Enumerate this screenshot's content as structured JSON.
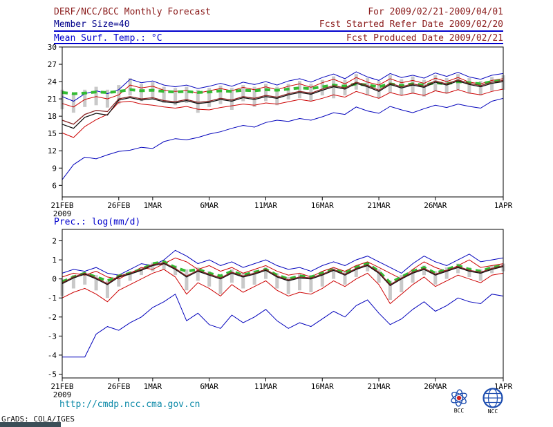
{
  "header": {
    "title": "DERF/NCC/BCC Monthly Forecast",
    "member_size": "Member Size=40",
    "temp_label": "Mean Surf. Temp.: °C",
    "for_range": "For 2009/02/21-2009/04/01",
    "refer_date": "Fcst Started Refer Date 2009/02/20",
    "produced_date": "Fcst Produced Date 2009/02/21"
  },
  "mid_label": "Prec.: log(mm/d)",
  "footer": {
    "url": "http://cmdp.ncc.cma.gov.cn",
    "credit": "GrADS: COLA/IGES",
    "logo_bcc": "BCC",
    "logo_ncc": "NCC"
  },
  "colors": {
    "title_maroon": "#8b1c1c",
    "member_navy": "#00008b",
    "label_blue": "#0000cc",
    "rule_blue": "#0000cc",
    "url_teal": "#0d8aa8",
    "bar_gray": "#c9c9c9"
  },
  "chart_data": [
    {
      "type": "line",
      "title": "Mean Surf. Temp.: °C",
      "xlabel": "",
      "ylabel": "°C",
      "ylim": [
        4,
        30
      ],
      "yticks": [
        6,
        9,
        12,
        15,
        18,
        21,
        24,
        27,
        30
      ],
      "grid": false,
      "legend": "none",
      "xticks": [
        {
          "day": 0,
          "label": "21FEB",
          "sub": "2009"
        },
        {
          "day": 5,
          "label": "26FEB"
        },
        {
          "day": 8,
          "label": "1MAR"
        },
        {
          "day": 13,
          "label": "6MAR"
        },
        {
          "day": 18,
          "label": "11MAR"
        },
        {
          "day": 23,
          "label": "16MAR"
        },
        {
          "day": 28,
          "label": "21MAR"
        },
        {
          "day": 33,
          "label": "26MAR"
        },
        {
          "day": 39,
          "label": "1APR"
        }
      ],
      "bars": {
        "color": "#c9c9c9",
        "low": [
          19.2,
          18.6,
          19.6,
          19.9,
          19.5,
          20.1,
          21.6,
          20.6,
          21.0,
          20.3,
          19.9,
          20.3,
          18.6,
          19.6,
          20.1,
          19.1,
          20.6,
          19.6,
          20.6,
          19.9,
          20.9,
          21.1,
          20.6,
          21.6,
          21.1,
          21.6,
          22.6,
          21.6,
          21.1,
          22.1,
          21.6,
          21.9,
          21.4,
          22.4,
          21.9,
          22.6,
          21.9,
          21.6,
          22.4,
          22.6
        ],
        "high": [
          22.6,
          21.9,
          22.6,
          23.1,
          22.6,
          23.4,
          24.6,
          23.6,
          23.9,
          23.1,
          22.9,
          23.1,
          22.6,
          22.9,
          23.3,
          22.9,
          23.4,
          23.1,
          23.6,
          23.1,
          23.6,
          24.1,
          23.6,
          24.3,
          24.9,
          24.3,
          25.3,
          24.6,
          24.1,
          25.1,
          24.4,
          24.9,
          24.3,
          25.1,
          24.6,
          25.3,
          24.6,
          24.1,
          24.8,
          25.1
        ]
      },
      "series": [
        {
          "name": "member-max",
          "color": "#0000bb",
          "width": 1,
          "dashed": false,
          "values": [
            21.4,
            20.6,
            21.9,
            22.4,
            21.9,
            22.6,
            24.4,
            23.8,
            24.1,
            23.4,
            23.1,
            23.4,
            22.8,
            23.2,
            23.7,
            23.2,
            23.9,
            23.5,
            24.0,
            23.4,
            24.1,
            24.5,
            23.9,
            24.7,
            25.3,
            24.5,
            25.7,
            24.8,
            24.2,
            25.4,
            24.7,
            25.1,
            24.6,
            25.5,
            24.9,
            25.6,
            24.8,
            24.4,
            25.1,
            25.4
          ]
        },
        {
          "name": "member-min",
          "color": "#0000bb",
          "width": 1,
          "dashed": false,
          "values": [
            7.0,
            9.6,
            10.9,
            10.6,
            11.3,
            11.9,
            12.1,
            12.6,
            12.4,
            13.6,
            14.1,
            13.9,
            14.3,
            14.9,
            15.3,
            15.9,
            16.4,
            16.1,
            16.9,
            17.3,
            17.1,
            17.6,
            17.3,
            17.9,
            18.6,
            18.3,
            19.6,
            18.9,
            18.5,
            19.7,
            19.1,
            18.6,
            19.3,
            19.9,
            19.5,
            20.1,
            19.7,
            19.4,
            20.6,
            21.1
          ]
        },
        {
          "name": "plus-sigma",
          "color": "#cc0000",
          "width": 1,
          "dashed": false,
          "values": [
            20.2,
            19.6,
            20.9,
            21.4,
            21.0,
            21.7,
            23.4,
            22.9,
            23.2,
            22.5,
            22.3,
            22.5,
            22.0,
            22.4,
            22.8,
            22.4,
            23.0,
            22.6,
            23.1,
            22.6,
            23.2,
            23.6,
            23.0,
            23.8,
            24.4,
            23.6,
            24.7,
            23.9,
            23.4,
            24.5,
            23.8,
            24.2,
            23.7,
            24.6,
            24.0,
            24.7,
            23.9,
            23.6,
            24.2,
            24.5
          ]
        },
        {
          "name": "minus-sigma",
          "color": "#cc0000",
          "width": 1,
          "dashed": false,
          "values": [
            15.1,
            14.3,
            16.2,
            17.4,
            18.3,
            20.4,
            20.6,
            20.1,
            19.9,
            19.6,
            19.4,
            19.7,
            19.2,
            19.1,
            19.5,
            19.8,
            20.1,
            19.9,
            20.3,
            20.1,
            20.5,
            20.9,
            20.6,
            21.1,
            21.7,
            21.3,
            22.3,
            21.7,
            21.1,
            22.1,
            21.6,
            22.0,
            21.6,
            22.4,
            22.0,
            22.6,
            22.0,
            21.7,
            22.3,
            22.7
          ]
        },
        {
          "name": "observation",
          "color": "#33bb33",
          "width": 4,
          "dashed": true,
          "values": [
            22.1,
            21.9,
            22.0,
            22.2,
            22.1,
            22.3,
            22.6,
            22.4,
            22.5,
            22.3,
            22.2,
            22.3,
            22.1,
            22.2,
            22.4,
            22.3,
            22.5,
            22.4,
            22.6,
            22.5,
            22.7,
            22.9,
            22.8,
            23.1,
            23.4,
            23.2,
            23.6,
            23.4,
            23.1,
            23.6,
            23.3,
            23.6,
            23.4,
            23.8,
            23.6,
            24.0,
            23.8,
            23.6,
            24.0,
            24.2
          ]
        },
        {
          "name": "ensemble-mean",
          "color": "#111111",
          "width": 1.3,
          "dashed": false,
          "values": [
            16.6,
            15.9,
            17.8,
            18.5,
            18.2,
            20.8,
            21.2,
            20.8,
            21.0,
            20.5,
            20.3,
            20.7,
            20.2,
            20.4,
            20.9,
            20.6,
            21.2,
            20.9,
            21.4,
            21.1,
            21.7,
            22.1,
            21.8,
            22.5,
            23.1,
            22.7,
            23.7,
            23.1,
            22.3,
            23.5,
            22.9,
            23.4,
            23.0,
            23.9,
            23.4,
            24.1,
            23.5,
            23.1,
            23.7,
            24.0
          ]
        },
        {
          "name": "control-run",
          "color": "#882222",
          "width": 1.3,
          "dashed": false,
          "values": [
            17.3,
            16.6,
            18.3,
            19.0,
            18.8,
            21.0,
            21.4,
            21.0,
            21.2,
            20.7,
            20.5,
            20.9,
            20.4,
            20.6,
            21.1,
            20.8,
            21.4,
            21.1,
            21.6,
            21.3,
            21.9,
            22.3,
            22.0,
            22.7,
            23.3,
            22.9,
            23.9,
            23.3,
            22.5,
            23.7,
            23.1,
            23.6,
            23.2,
            24.1,
            23.6,
            24.3,
            23.7,
            23.3,
            23.9,
            24.2
          ]
        }
      ]
    },
    {
      "type": "line",
      "title": "Prec.: log(mm/d)",
      "xlabel": "",
      "ylabel": "log(mm/d)",
      "ylim": [
        -5.2,
        2.6
      ],
      "yticks": [
        -5,
        -4,
        -3,
        -2,
        -1,
        0,
        1,
        2
      ],
      "grid": false,
      "legend": "none",
      "xticks": [
        {
          "day": 0,
          "label": "21FEB",
          "sub": "2009"
        },
        {
          "day": 5,
          "label": "26FEB"
        },
        {
          "day": 8,
          "label": "1MAR"
        },
        {
          "day": 13,
          "label": "6MAR"
        },
        {
          "day": 18,
          "label": "11MAR"
        },
        {
          "day": 23,
          "label": "16MAR"
        },
        {
          "day": 28,
          "label": "21MAR"
        },
        {
          "day": 33,
          "label": "26MAR"
        },
        {
          "day": 39,
          "label": "1APR"
        }
      ],
      "bars": {
        "color": "#c9c9c9",
        "low": [
          -0.9,
          -0.5,
          -0.3,
          -0.6,
          -1.0,
          -0.4,
          -0.1,
          0.2,
          0.4,
          0.5,
          0.2,
          -0.6,
          -0.1,
          -0.4,
          -0.8,
          -0.2,
          -0.5,
          -0.3,
          0.0,
          -0.5,
          -0.8,
          -0.6,
          -0.7,
          -0.4,
          0.0,
          -0.3,
          0.1,
          0.4,
          -0.2,
          -1.1,
          -0.7,
          -0.2,
          0.2,
          -0.3,
          0.0,
          0.3,
          0.1,
          -0.1,
          0.3,
          0.4
        ],
        "high": [
          0.0,
          0.2,
          0.35,
          0.2,
          -0.1,
          0.25,
          0.4,
          0.6,
          0.85,
          1.0,
          0.7,
          0.5,
          0.6,
          0.4,
          0.25,
          0.5,
          0.3,
          0.45,
          0.6,
          0.3,
          0.1,
          0.25,
          0.2,
          0.4,
          0.6,
          0.4,
          0.7,
          0.9,
          0.5,
          -0.1,
          0.2,
          0.5,
          0.7,
          0.4,
          0.6,
          0.8,
          0.6,
          0.5,
          0.7,
          0.8
        ]
      },
      "series": [
        {
          "name": "member-max",
          "color": "#0000bb",
          "width": 1,
          "dashed": false,
          "values": [
            0.3,
            0.5,
            0.4,
            0.6,
            0.3,
            0.2,
            0.5,
            0.8,
            0.7,
            1.0,
            1.5,
            1.2,
            0.8,
            1.0,
            0.7,
            0.9,
            0.6,
            0.8,
            1.0,
            0.7,
            0.5,
            0.6,
            0.4,
            0.7,
            0.9,
            0.7,
            1.0,
            1.2,
            0.9,
            0.6,
            0.3,
            0.8,
            1.2,
            0.9,
            0.7,
            1.0,
            1.3,
            0.9,
            1.0,
            1.1
          ]
        },
        {
          "name": "member-min",
          "color": "#0000bb",
          "width": 1,
          "dashed": false,
          "values": [
            -4.1,
            -4.1,
            -4.1,
            -2.9,
            -2.5,
            -2.7,
            -2.3,
            -2.0,
            -1.5,
            -1.2,
            -0.8,
            -2.2,
            -1.8,
            -2.4,
            -2.6,
            -1.9,
            -2.3,
            -2.0,
            -1.6,
            -2.2,
            -2.6,
            -2.3,
            -2.5,
            -2.1,
            -1.7,
            -2.0,
            -1.4,
            -1.1,
            -1.8,
            -2.4,
            -2.1,
            -1.6,
            -1.2,
            -1.7,
            -1.4,
            -1.0,
            -1.2,
            -1.3,
            -0.8,
            -0.9
          ]
        },
        {
          "name": "plus-sigma",
          "color": "#cc0000",
          "width": 1,
          "dashed": false,
          "values": [
            0.1,
            0.3,
            0.2,
            0.4,
            0.1,
            0.0,
            0.3,
            0.6,
            0.5,
            0.8,
            1.1,
            0.9,
            0.5,
            0.7,
            0.4,
            0.6,
            0.3,
            0.5,
            0.7,
            0.4,
            0.2,
            0.3,
            0.1,
            0.4,
            0.6,
            0.4,
            0.7,
            0.9,
            0.6,
            0.3,
            0.0,
            0.5,
            0.9,
            0.6,
            0.4,
            0.7,
            1.0,
            0.6,
            0.7,
            0.8
          ]
        },
        {
          "name": "minus-sigma",
          "color": "#cc0000",
          "width": 1,
          "dashed": false,
          "values": [
            -1.0,
            -0.7,
            -0.5,
            -0.8,
            -1.2,
            -0.6,
            -0.3,
            0.0,
            0.3,
            0.5,
            0.1,
            -0.8,
            -0.2,
            -0.5,
            -0.9,
            -0.3,
            -0.7,
            -0.4,
            -0.1,
            -0.6,
            -0.9,
            -0.7,
            -0.8,
            -0.5,
            -0.1,
            -0.4,
            0.0,
            0.3,
            -0.3,
            -1.3,
            -0.8,
            -0.3,
            0.1,
            -0.4,
            -0.1,
            0.2,
            0.0,
            -0.2,
            0.2,
            0.3
          ]
        },
        {
          "name": "observation",
          "color": "#33bb33",
          "width": 4,
          "dashed": true,
          "values": [
            -0.15,
            0.1,
            0.3,
            0.1,
            -0.1,
            0.15,
            0.3,
            0.5,
            0.8,
            0.9,
            0.6,
            0.4,
            0.5,
            0.3,
            0.15,
            0.4,
            0.2,
            0.35,
            0.5,
            0.2,
            0.0,
            0.15,
            0.1,
            0.3,
            0.5,
            0.3,
            0.6,
            0.8,
            0.4,
            -0.2,
            0.1,
            0.4,
            0.6,
            0.3,
            0.5,
            0.7,
            0.5,
            0.4,
            0.6,
            0.7
          ]
        },
        {
          "name": "ensemble-mean",
          "color": "#111111",
          "width": 1.3,
          "dashed": false,
          "values": [
            -0.25,
            0.05,
            0.25,
            0.0,
            -0.3,
            0.1,
            0.25,
            0.45,
            0.7,
            0.8,
            0.5,
            0.1,
            0.4,
            0.2,
            0.0,
            0.3,
            0.1,
            0.25,
            0.45,
            0.1,
            -0.1,
            0.05,
            0.0,
            0.2,
            0.45,
            0.2,
            0.5,
            0.7,
            0.3,
            -0.35,
            0.0,
            0.3,
            0.5,
            0.2,
            0.4,
            0.6,
            0.4,
            0.3,
            0.5,
            0.65
          ]
        },
        {
          "name": "control-run",
          "color": "#882222",
          "width": 1.3,
          "dashed": false,
          "values": [
            -0.2,
            0.1,
            0.3,
            0.05,
            -0.25,
            0.15,
            0.3,
            0.5,
            0.75,
            0.85,
            0.55,
            0.15,
            0.45,
            0.25,
            0.05,
            0.35,
            0.15,
            0.3,
            0.5,
            0.15,
            -0.05,
            0.1,
            0.05,
            0.25,
            0.5,
            0.25,
            0.55,
            0.75,
            0.35,
            -0.3,
            0.05,
            0.35,
            0.55,
            0.25,
            0.45,
            0.65,
            0.45,
            0.35,
            0.55,
            0.7
          ]
        }
      ]
    }
  ]
}
